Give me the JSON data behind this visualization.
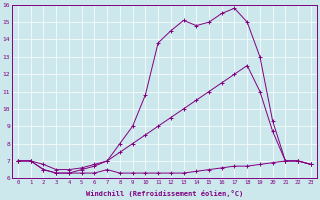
{
  "xlabel": "Windchill (Refroidissement éolien,°C)",
  "background_color": "#cce8ec",
  "line_color": "#800080",
  "x": [
    0,
    1,
    2,
    3,
    4,
    5,
    6,
    7,
    8,
    9,
    10,
    11,
    12,
    13,
    14,
    15,
    16,
    17,
    18,
    19,
    20,
    21,
    22,
    23
  ],
  "line1": [
    7.0,
    7.0,
    6.5,
    6.3,
    6.3,
    6.3,
    6.3,
    6.5,
    6.3,
    6.3,
    6.3,
    6.3,
    6.3,
    6.3,
    6.4,
    6.5,
    6.6,
    6.7,
    6.7,
    6.8,
    6.9,
    7.0,
    7.0,
    6.8
  ],
  "line2": [
    7.0,
    7.0,
    6.8,
    6.5,
    6.5,
    6.6,
    6.8,
    7.0,
    7.5,
    8.0,
    8.5,
    9.0,
    9.5,
    10.0,
    10.5,
    11.0,
    11.5,
    12.0,
    12.5,
    11.0,
    8.7,
    7.0,
    7.0,
    6.8
  ],
  "line3": [
    7.0,
    7.0,
    6.5,
    6.3,
    6.3,
    6.5,
    6.7,
    7.0,
    8.0,
    9.0,
    10.8,
    13.8,
    14.5,
    15.1,
    14.8,
    15.0,
    15.5,
    15.8,
    15.0,
    13.0,
    9.3,
    7.0,
    7.0,
    6.8
  ],
  "ylim": [
    6,
    16
  ],
  "xlim_min": -0.5,
  "xlim_max": 23.5,
  "yticks": [
    6,
    7,
    8,
    9,
    10,
    11,
    12,
    13,
    14,
    15,
    16
  ],
  "xticks": [
    0,
    1,
    2,
    3,
    4,
    5,
    6,
    7,
    8,
    9,
    10,
    11,
    12,
    13,
    14,
    15,
    16,
    17,
    18,
    19,
    20,
    21,
    22,
    23
  ]
}
